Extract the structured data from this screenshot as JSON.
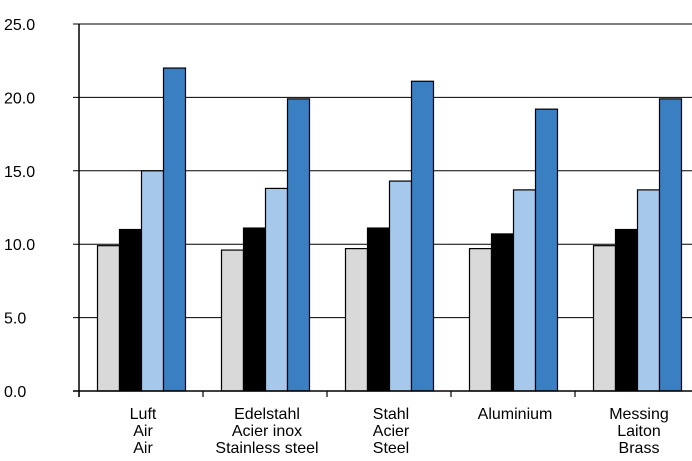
{
  "chart_data": {
    "type": "bar",
    "title": "",
    "xlabel": "",
    "ylabel": "",
    "ylim": [
      0,
      25
    ],
    "yticks": [
      "0.0",
      "5.0",
      "10.0",
      "15.0",
      "20.0",
      "25.0"
    ],
    "grid": true,
    "legend": "none",
    "categories": [
      [
        "Luft",
        "Air",
        "Air"
      ],
      [
        "Edelstahl",
        "Acier inox",
        "Stainless steel"
      ],
      [
        "Stahl",
        "Acier",
        "Steel"
      ],
      [
        "Aluminium"
      ],
      [
        "Messing",
        "Laiton",
        "Brass"
      ]
    ],
    "series": [
      {
        "color": "#d9d9d9",
        "values": [
          9.9,
          9.6,
          9.7,
          9.7,
          9.9
        ]
      },
      {
        "color": "#000000",
        "values": [
          11.0,
          11.1,
          11.1,
          10.7,
          11.0
        ]
      },
      {
        "color": "#a6c8ea",
        "values": [
          15.0,
          13.8,
          14.3,
          13.7,
          13.7
        ]
      },
      {
        "color": "#3a7fc1",
        "values": [
          22.0,
          19.9,
          21.1,
          19.2,
          19.9
        ]
      }
    ]
  }
}
